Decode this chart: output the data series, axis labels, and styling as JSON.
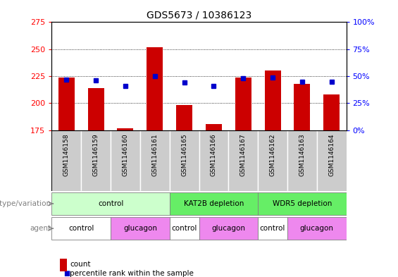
{
  "title": "GDS5673 / 10386123",
  "samples": [
    "GSM1146158",
    "GSM1146159",
    "GSM1146160",
    "GSM1146161",
    "GSM1146165",
    "GSM1146166",
    "GSM1146167",
    "GSM1146162",
    "GSM1146163",
    "GSM1146164"
  ],
  "counts": [
    224,
    214,
    177,
    252,
    198,
    181,
    224,
    230,
    218,
    208
  ],
  "percentiles": [
    47,
    46,
    41,
    50,
    44,
    41,
    48,
    49,
    45,
    45
  ],
  "ylim_left": [
    175,
    275
  ],
  "ylim_right": [
    0,
    100
  ],
  "yticks_left": [
    175,
    200,
    225,
    250,
    275
  ],
  "yticks_right": [
    0,
    25,
    50,
    75,
    100
  ],
  "bar_color": "#cc0000",
  "dot_color": "#0000cc",
  "bar_bottom": 175,
  "genotype_groups": [
    {
      "label": "control",
      "start": 0,
      "end": 4,
      "color": "#ccffcc"
    },
    {
      "label": "KAT2B depletion",
      "start": 4,
      "end": 7,
      "color": "#66ee66"
    },
    {
      "label": "WDR5 depletion",
      "start": 7,
      "end": 10,
      "color": "#66ee66"
    }
  ],
  "agent_groups": [
    {
      "label": "control",
      "start": 0,
      "end": 2,
      "color": "#ffffff"
    },
    {
      "label": "glucagon",
      "start": 2,
      "end": 4,
      "color": "#ee88ee"
    },
    {
      "label": "control",
      "start": 4,
      "end": 5,
      "color": "#ffffff"
    },
    {
      "label": "glucagon",
      "start": 5,
      "end": 7,
      "color": "#ee88ee"
    },
    {
      "label": "control",
      "start": 7,
      "end": 8,
      "color": "#ffffff"
    },
    {
      "label": "glucagon",
      "start": 8,
      "end": 10,
      "color": "#ee88ee"
    }
  ],
  "legend_count_color": "#cc0000",
  "legend_dot_color": "#0000cc",
  "label_genotype": "genotype/variation",
  "label_agent": "agent",
  "legend_count_label": "count",
  "legend_percentile_label": "percentile rank within the sample",
  "sample_box_color": "#cccccc",
  "grid_dotted_at": [
    200,
    225,
    250
  ]
}
